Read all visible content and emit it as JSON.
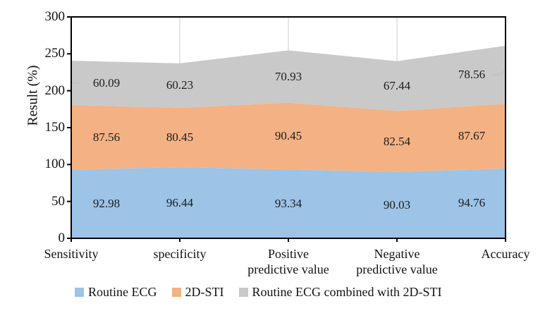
{
  "chart_data": {
    "type": "area",
    "stacked": true,
    "title": "",
    "xlabel": "",
    "ylabel": "Result (%)",
    "ylim": [
      0,
      300
    ],
    "yticks": [
      0,
      50,
      100,
      150,
      200,
      250,
      300
    ],
    "grid_vertical": true,
    "grid_horizontal": false,
    "legend_position": "bottom",
    "value_decimals": 2,
    "categories": [
      "Sensitivity",
      "specificity",
      "Positive predictive value",
      "Negative predictive value",
      "Accuracy"
    ],
    "category_lines": [
      "Sensitivity",
      "specificity",
      "Positive\npredictive value",
      "Negative\npredictive value",
      "Accuracy"
    ],
    "series": [
      {
        "name": "Routine ECG",
        "color": "#9DC3E6",
        "values": [
          92.98,
          96.44,
          93.34,
          90.03,
          94.76
        ]
      },
      {
        "name": "2D-STI",
        "color": "#F4B183",
        "values": [
          87.56,
          80.45,
          90.45,
          82.54,
          87.67
        ]
      },
      {
        "name": "Routine ECG combined with 2D-STI",
        "color": "#C9C9C9",
        "values": [
          60.09,
          60.23,
          70.93,
          67.44,
          78.56
        ]
      }
    ],
    "colors": {
      "axis": "#000000",
      "gridline": "#D9D9D9",
      "leader_line": "#BFBFBF",
      "data_label": "#1c1c1c",
      "background": "#FFFFFF"
    }
  }
}
